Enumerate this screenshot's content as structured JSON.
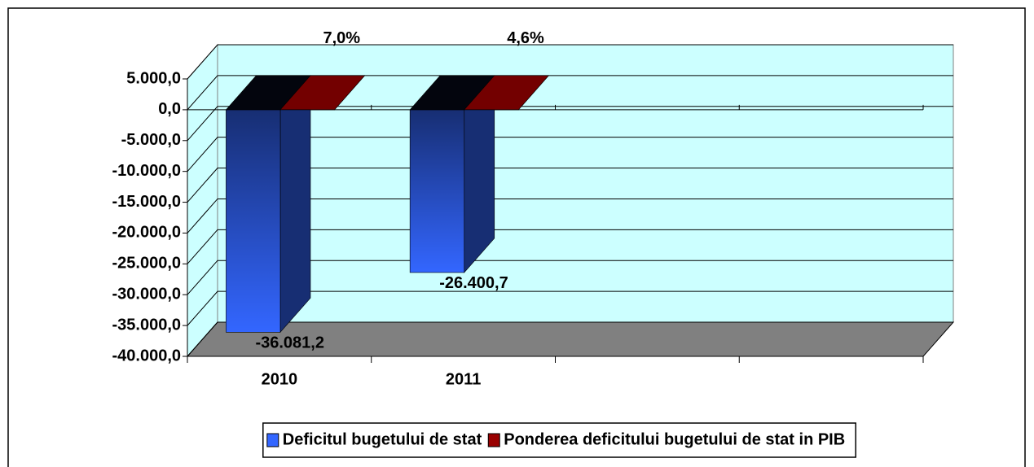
{
  "chart_data": {
    "type": "bar3d",
    "categories": [
      "2010",
      "2011",
      null,
      null
    ],
    "series": [
      {
        "name": "Deficitul bugetului de stat",
        "color": "#3366ff",
        "values": [
          -36081.2,
          -26400.7,
          null,
          null
        ],
        "value_labels": [
          "-36.081,2",
          "-26.400,7",
          null,
          null
        ]
      },
      {
        "name": "Ponderea deficitului bugetului de stat in PIB",
        "color": "#990000",
        "values": [
          7.0,
          4.6,
          null,
          null
        ],
        "value_labels": [
          "7,0%",
          "4,6%",
          null,
          null
        ]
      }
    ],
    "ylim": [
      -40000,
      5000
    ],
    "yticks": [
      {
        "value": -40000,
        "label": "-40.000,0"
      },
      {
        "value": -35000,
        "label": "-35.000,0"
      },
      {
        "value": -30000,
        "label": "-30.000,0"
      },
      {
        "value": -25000,
        "label": "-25.000,0"
      },
      {
        "value": -20000,
        "label": "-20.000,0"
      },
      {
        "value": -15000,
        "label": "-15.000,0"
      },
      {
        "value": -10000,
        "label": "-10.000,0"
      },
      {
        "value": -5000,
        "label": "-5.000,0"
      },
      {
        "value": 0,
        "label": "0,0"
      },
      {
        "value": 5000,
        "label": "5.000,0"
      }
    ],
    "grid": true,
    "legend": "bottom"
  }
}
